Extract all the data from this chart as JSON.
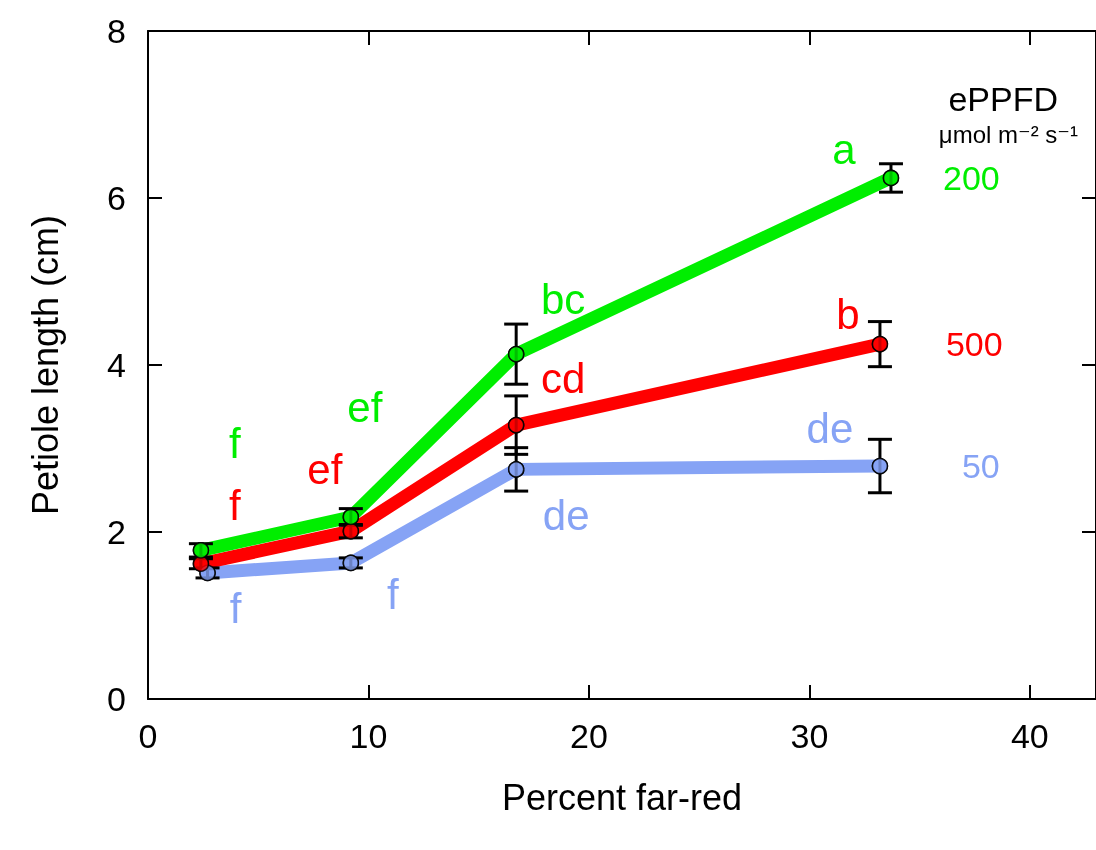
{
  "chart_data": {
    "type": "line",
    "xlabel": "Percent far-red",
    "ylabel": "Petiole length (cm)",
    "legend_title": "ePPFD",
    "annotations": [
      "μmol m⁻² s⁻¹"
    ],
    "xlim": [
      0,
      43
    ],
    "xticks": [
      0,
      10,
      20,
      30,
      40
    ],
    "ylim": [
      0,
      8
    ],
    "yticks": [
      0,
      2,
      4,
      6,
      8
    ],
    "grid": false,
    "legend": "right",
    "marker": "circle",
    "line_style": "solid",
    "series": [
      {
        "name": "50",
        "color": "#86a3f5",
        "x": [
          2.7,
          9.2,
          16.7,
          33.2
        ],
        "values": [
          1.51,
          1.63,
          2.75,
          2.79
        ],
        "errors": [
          0.06,
          0.06,
          0.26,
          0.32
        ],
        "value_labels": [
          "f",
          "f",
          "de",
          "de"
        ]
      },
      {
        "name": "500",
        "color": "#ff0000",
        "x": [
          2.4,
          9.2,
          16.7,
          33.2
        ],
        "values": [
          1.62,
          2.01,
          3.28,
          4.25
        ],
        "errors": [
          0.06,
          0.08,
          0.35,
          0.27
        ],
        "value_labels": [
          "f",
          "ef",
          "cd",
          "b"
        ]
      },
      {
        "name": "200",
        "color": "#00ee00",
        "x": [
          2.4,
          9.2,
          16.7,
          33.7
        ],
        "values": [
          1.78,
          2.18,
          4.13,
          6.24
        ],
        "errors": [
          0.08,
          0.1,
          0.36,
          0.17
        ],
        "value_labels": [
          "f",
          "ef",
          "bc",
          "a"
        ]
      }
    ]
  }
}
